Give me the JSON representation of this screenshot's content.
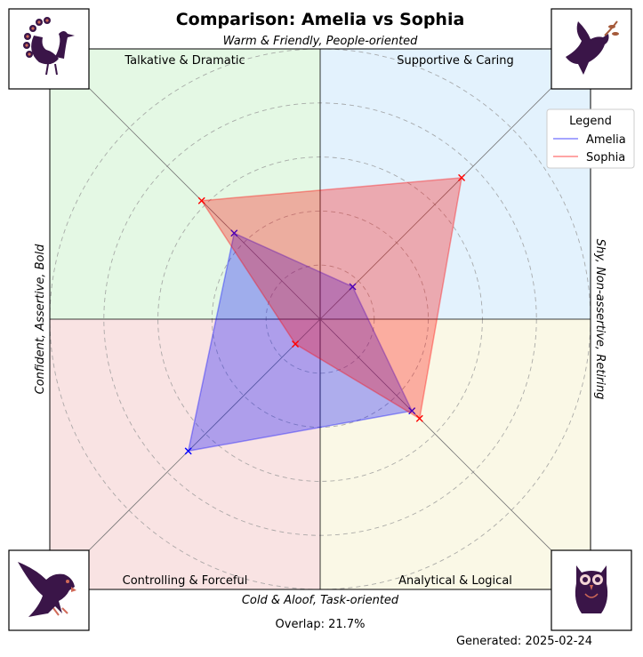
{
  "chart_data": {
    "type": "radar-quadrant",
    "title": "Comparison: Amelia vs Sophia",
    "axes": {
      "top": "Warm & Friendly, People-oriented",
      "bottom": "Cold & Aloof, Task-oriented",
      "left": "Confident, Assertive, Bold",
      "right": "Shy, Non-assertive, Retiring"
    },
    "quadrants": {
      "top_left": {
        "label": "Talkative & Dramatic",
        "color": "#e4f8e4"
      },
      "top_right": {
        "label": "Supportive & Caring",
        "color": "#e3f2fd"
      },
      "bottom_left": {
        "label": "Controlling & Forceful",
        "color": "#f9e3e3"
      },
      "bottom_right": {
        "label": "Analytical & Logical",
        "color": "#faf8e6"
      }
    },
    "diagonals": [
      "Talkative & Dramatic",
      "Supportive & Caring",
      "Analytical & Logical",
      "Controlling & Forceful"
    ],
    "range": [
      0,
      1
    ],
    "rings": [
      0.2,
      0.4,
      0.6,
      0.8,
      1.0
    ],
    "grid": true,
    "legend": {
      "title": "Legend",
      "position": "top-right"
    },
    "series": [
      {
        "name": "Amelia",
        "color": "#0000ff",
        "values": [
          0.45,
          0.17,
          0.48,
          0.69
        ]
      },
      {
        "name": "Sophia",
        "color": "#ff0000",
        "values": [
          0.62,
          0.74,
          0.52,
          0.13
        ]
      }
    ],
    "overlap_text": "Overlap: 21.7%",
    "generated_text": "Generated: 2025-02-24"
  },
  "icons": {
    "top_left": "peacock-icon",
    "top_right": "dove-icon",
    "bottom_left": "eagle-icon",
    "bottom_right": "owl-icon"
  }
}
